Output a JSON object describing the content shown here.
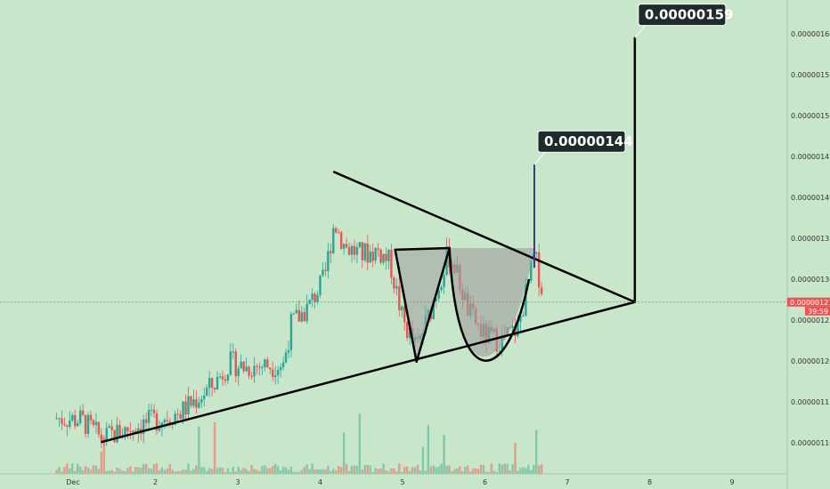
{
  "chart_data": {
    "type": "candlestick",
    "x_tick_labels": [
      "Dec",
      "2",
      "3",
      "4",
      "5",
      "6",
      "7",
      "8",
      "9"
    ],
    "y_tick_labels": [
      "0.00000110",
      "0.00000115",
      "0.00000120",
      "0.00000125",
      "0.00000130",
      "0.00000135",
      "0.00000140",
      "0.00000145",
      "0.00000150",
      "0.00000155",
      "0.00000160"
    ],
    "y_ticks": [
      1.1,
      1.15,
      1.2,
      1.25,
      1.3,
      1.35,
      1.4,
      1.45,
      1.5,
      1.55,
      1.6
    ],
    "x_range": [
      0.8,
      9.5
    ],
    "y_range": [
      1.067,
      1.655
    ],
    "current_price": {
      "label": "0.00000127",
      "value": 1.272,
      "countdown": "39:59"
    },
    "callouts": [
      {
        "label": "0.00000144",
        "x": 6.6,
        "y": 1.44
      },
      {
        "label": "0.00000159",
        "x": 7.82,
        "y": 1.595
      }
    ],
    "trendlines": [
      {
        "name": "resistance",
        "points": [
          [
            4.17,
            1.431
          ],
          [
            7.82,
            1.272
          ]
        ]
      },
      {
        "name": "support",
        "points": [
          [
            1.35,
            1.101
          ],
          [
            7.82,
            1.272
          ]
        ]
      },
      {
        "name": "measured-move-target",
        "points": [
          [
            7.82,
            1.272
          ],
          [
            7.82,
            1.595
          ]
        ]
      },
      {
        "name": "breakout-target",
        "points": [
          [
            6.6,
            1.315
          ],
          [
            6.6,
            1.44
          ]
        ]
      }
    ],
    "patterns": [
      {
        "name": "v-pattern",
        "points": [
          [
            4.91,
            1.336
          ],
          [
            5.17,
            1.199
          ],
          [
            5.57,
            1.338
          ]
        ]
      },
      {
        "name": "cup-pattern",
        "rim_y": 1.338,
        "bottom_y": 1.21,
        "start_x": 5.57,
        "end_x": 6.6
      }
    ],
    "colors": {
      "up": "#26a69a",
      "down": "#ef5350",
      "up_volume": "#7fc8a9",
      "down_volume": "#e49b8b",
      "current_line": "#ef5350",
      "callout_bg": "#1f2b28",
      "pattern_fill": "#9e9e9e"
    }
  }
}
